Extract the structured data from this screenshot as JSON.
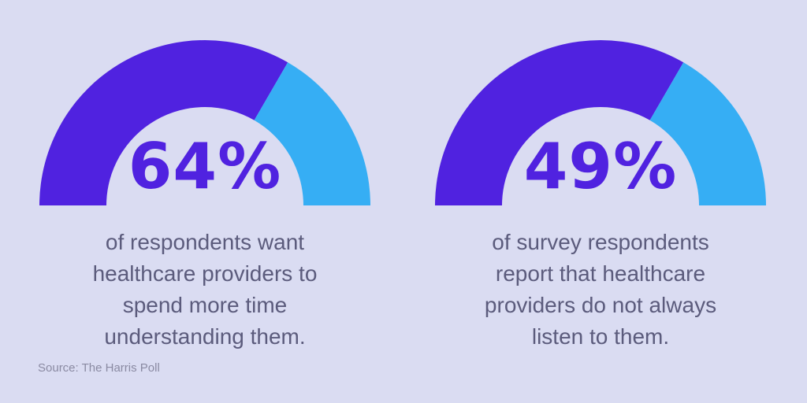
{
  "chart_data": [
    {
      "type": "gauge",
      "value_label": "64%",
      "value": 64,
      "description": "of respondents want healthcare providers to spend more time understanding them.",
      "colors": {
        "filled": "#5022e0",
        "remaining": "#36aef4"
      }
    },
    {
      "type": "gauge",
      "value_label": "49%",
      "value": 49,
      "description": "of survey respondents report that healthcare providers do not always listen to them.",
      "colors": {
        "filled": "#5022e0",
        "remaining": "#36aef4"
      }
    }
  ],
  "source": "Source: The Harris Poll",
  "colors": {
    "background": "#dadcf2",
    "text": "#5b5b7c"
  }
}
